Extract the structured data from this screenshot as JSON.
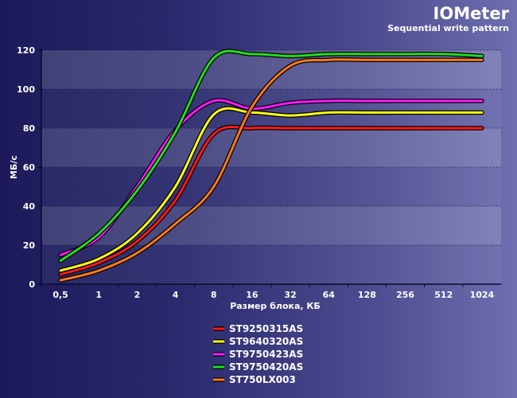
{
  "chart_data": {
    "type": "line",
    "title": "IOMeter",
    "subtitle": "Sequential write pattern",
    "xlabel": "Размер блока, КБ",
    "ylabel": "МБ/с",
    "categories": [
      "0,5",
      "1",
      "2",
      "4",
      "8",
      "16",
      "32",
      "64",
      "128",
      "256",
      "512",
      "1024"
    ],
    "ylim": [
      0,
      120
    ],
    "yticks": [
      "0",
      "20",
      "40",
      "60",
      "80",
      "100",
      "120"
    ],
    "grid": true,
    "legend": "bottom-center",
    "series": [
      {
        "name": "ST9250315AS",
        "color": "#ff1a1a",
        "values": [
          5,
          11,
          22,
          43,
          77,
          80,
          80,
          80,
          80,
          80,
          80,
          80
        ]
      },
      {
        "name": "ST9640320AS",
        "color": "#ffff1a",
        "values": [
          7,
          13,
          26,
          50,
          87,
          88,
          86.5,
          88,
          88,
          88,
          88,
          88
        ]
      },
      {
        "name": "ST9750423AS",
        "color": "#ff1aff",
        "values": [
          15,
          24,
          50,
          79,
          94,
          90,
          93,
          94,
          94,
          94,
          94,
          94
        ]
      },
      {
        "name": "ST9750420AS",
        "color": "#22dd22",
        "values": [
          12,
          26,
          48,
          78,
          116,
          118,
          117,
          118,
          118,
          118,
          118,
          117
        ]
      },
      {
        "name": "ST750LX003",
        "color": "#ff7a1a",
        "values": [
          2,
          7,
          16,
          31,
          50,
          91,
          112,
          115,
          115,
          115,
          115,
          115
        ]
      }
    ]
  }
}
